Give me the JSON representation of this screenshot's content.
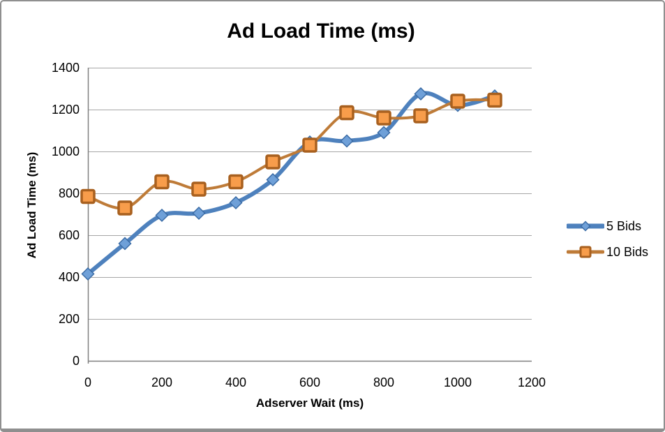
{
  "frame": {
    "background": "#ffffff",
    "border_color": "#8f8f8f"
  },
  "chart_data": {
    "type": "line",
    "title": "Ad Load Time (ms)",
    "xlabel": "Adserver Wait (ms)",
    "ylabel": "Ad Load Time (ms)",
    "x": [
      0,
      100,
      200,
      300,
      400,
      500,
      600,
      700,
      800,
      900,
      1000,
      1100
    ],
    "series": [
      {
        "name": "5 Bids",
        "values": [
          415,
          560,
          695,
          705,
          755,
          865,
          1045,
          1050,
          1090,
          1275,
          1220,
          1265
        ],
        "color": "#4e81bd",
        "line_width": 6,
        "marker": "diamond",
        "marker_fill": "#6fa0d8",
        "marker_border": "#3a6ba5",
        "marker_size": 17
      },
      {
        "name": "10 Bids",
        "values": [
          785,
          730,
          855,
          820,
          855,
          950,
          1030,
          1185,
          1160,
          1170,
          1240,
          1245
        ],
        "color": "#be7b38",
        "line_width": 4,
        "marker": "square",
        "marker_fill": "#f89d4b",
        "marker_border": "#a8601f",
        "marker_size": 18
      }
    ],
    "xlim": [
      0,
      1200
    ],
    "ylim": [
      0,
      1400
    ],
    "x_ticks": [
      0,
      200,
      400,
      600,
      800,
      1000,
      1200
    ],
    "y_ticks": [
      0,
      200,
      400,
      600,
      800,
      1000,
      1200,
      1400
    ],
    "grid": true,
    "smooth": true,
    "legend_position": "right",
    "gridline_color": "#a6a6a6",
    "axis_line_color": "#808080",
    "text_color": "#000000"
  }
}
